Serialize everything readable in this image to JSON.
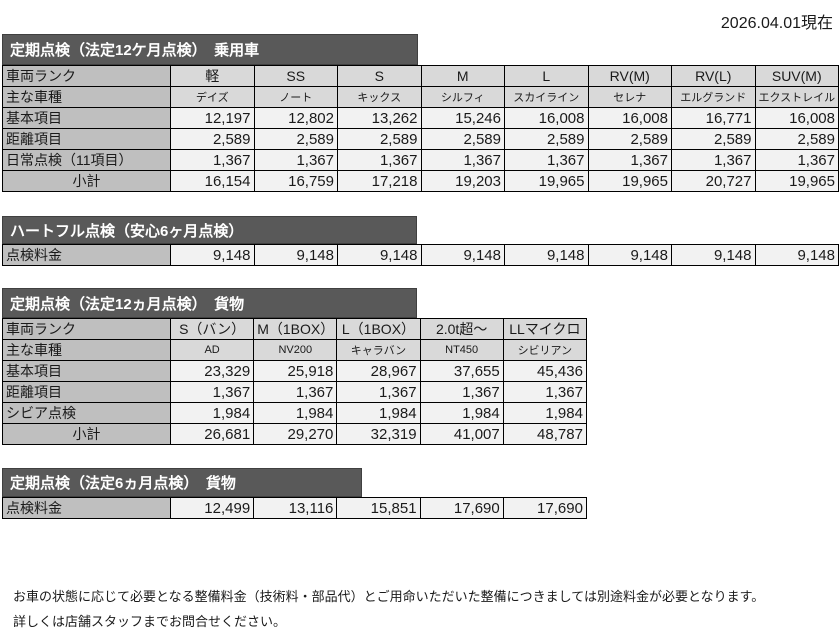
{
  "page": {
    "date_label": "2026.04.01現在"
  },
  "colors": {
    "title_bar_bg": "#595959",
    "title_bar_text": "#ffffff",
    "row_label_bg": "#bfbfbf",
    "column_header_bg": "#d9d9d9",
    "value_cell_bg": "#f2f2f2",
    "border": "#000000",
    "page_bg": "#ffffff"
  },
  "tables": [
    {
      "title": "定期点検（法定12ケ月点検）　乗用車",
      "rank_label": "車両ランク",
      "model_label": "主な車種",
      "ranks": [
        "軽",
        "SS",
        "S",
        "M",
        "L",
        "RV(M)",
        "RV(L)",
        "SUV(M)"
      ],
      "models": [
        "デイズ",
        "ノート",
        "キックス",
        "シルフィ",
        "スカイライン",
        "セレナ",
        "エルグランド",
        "エクストレイル"
      ],
      "rows": [
        {
          "label": "基本項目",
          "values": [
            "12,197",
            "12,802",
            "13,262",
            "15,246",
            "16,008",
            "16,008",
            "16,771",
            "16,008"
          ]
        },
        {
          "label": "距離項目",
          "values": [
            "2,589",
            "2,589",
            "2,589",
            "2,589",
            "2,589",
            "2,589",
            "2,589",
            "2,589"
          ]
        },
        {
          "label": "日常点検（11項目）",
          "values": [
            "1,367",
            "1,367",
            "1,367",
            "1,367",
            "1,367",
            "1,367",
            "1,367",
            "1,367"
          ]
        },
        {
          "label": "小計",
          "is_subtotal": true,
          "values": [
            "16,154",
            "16,759",
            "17,218",
            "19,203",
            "19,965",
            "19,965",
            "20,727",
            "19,965"
          ]
        }
      ]
    },
    {
      "title": "ハートフル点検（安心6ヶ月点検）",
      "rows": [
        {
          "label": "点検料金",
          "values": [
            "9,148",
            "9,148",
            "9,148",
            "9,148",
            "9,148",
            "9,148",
            "9,148",
            "9,148"
          ]
        }
      ]
    },
    {
      "title": "定期点検（法定12ヵ月点検）　貨物",
      "rank_label": "車両ランク",
      "model_label": "主な車種",
      "ranks": [
        "S（バン）",
        "M（1BOX）",
        "L（1BOX）",
        "2.0t超～",
        "LLマイクロ"
      ],
      "models": [
        "AD",
        "NV200",
        "キャラバン",
        "NT450",
        "シビリアン"
      ],
      "rows": [
        {
          "label": "基本項目",
          "values": [
            "23,329",
            "25,918",
            "28,967",
            "37,655",
            "45,436"
          ]
        },
        {
          "label": "距離項目",
          "values": [
            "1,367",
            "1,367",
            "1,367",
            "1,367",
            "1,367"
          ]
        },
        {
          "label": "シビア点検",
          "values": [
            "1,984",
            "1,984",
            "1,984",
            "1,984",
            "1,984"
          ]
        },
        {
          "label": "小計",
          "is_subtotal": true,
          "values": [
            "26,681",
            "29,270",
            "32,319",
            "41,007",
            "48,787"
          ]
        }
      ]
    },
    {
      "title": "定期点検（法定6ヵ月点検）　貨物",
      "rows": [
        {
          "label": "点検料金",
          "values": [
            "12,499",
            "13,116",
            "15,851",
            "17,690",
            "17,690"
          ]
        }
      ]
    }
  ],
  "footer": {
    "line1": "お車の状態に応じて必要となる整備料金（技術料・部品代）とご用命いただいた整備につきましては別途料金が必要となります。",
    "line2": "詳しくは店舗スタッフまでお問合せください。"
  }
}
